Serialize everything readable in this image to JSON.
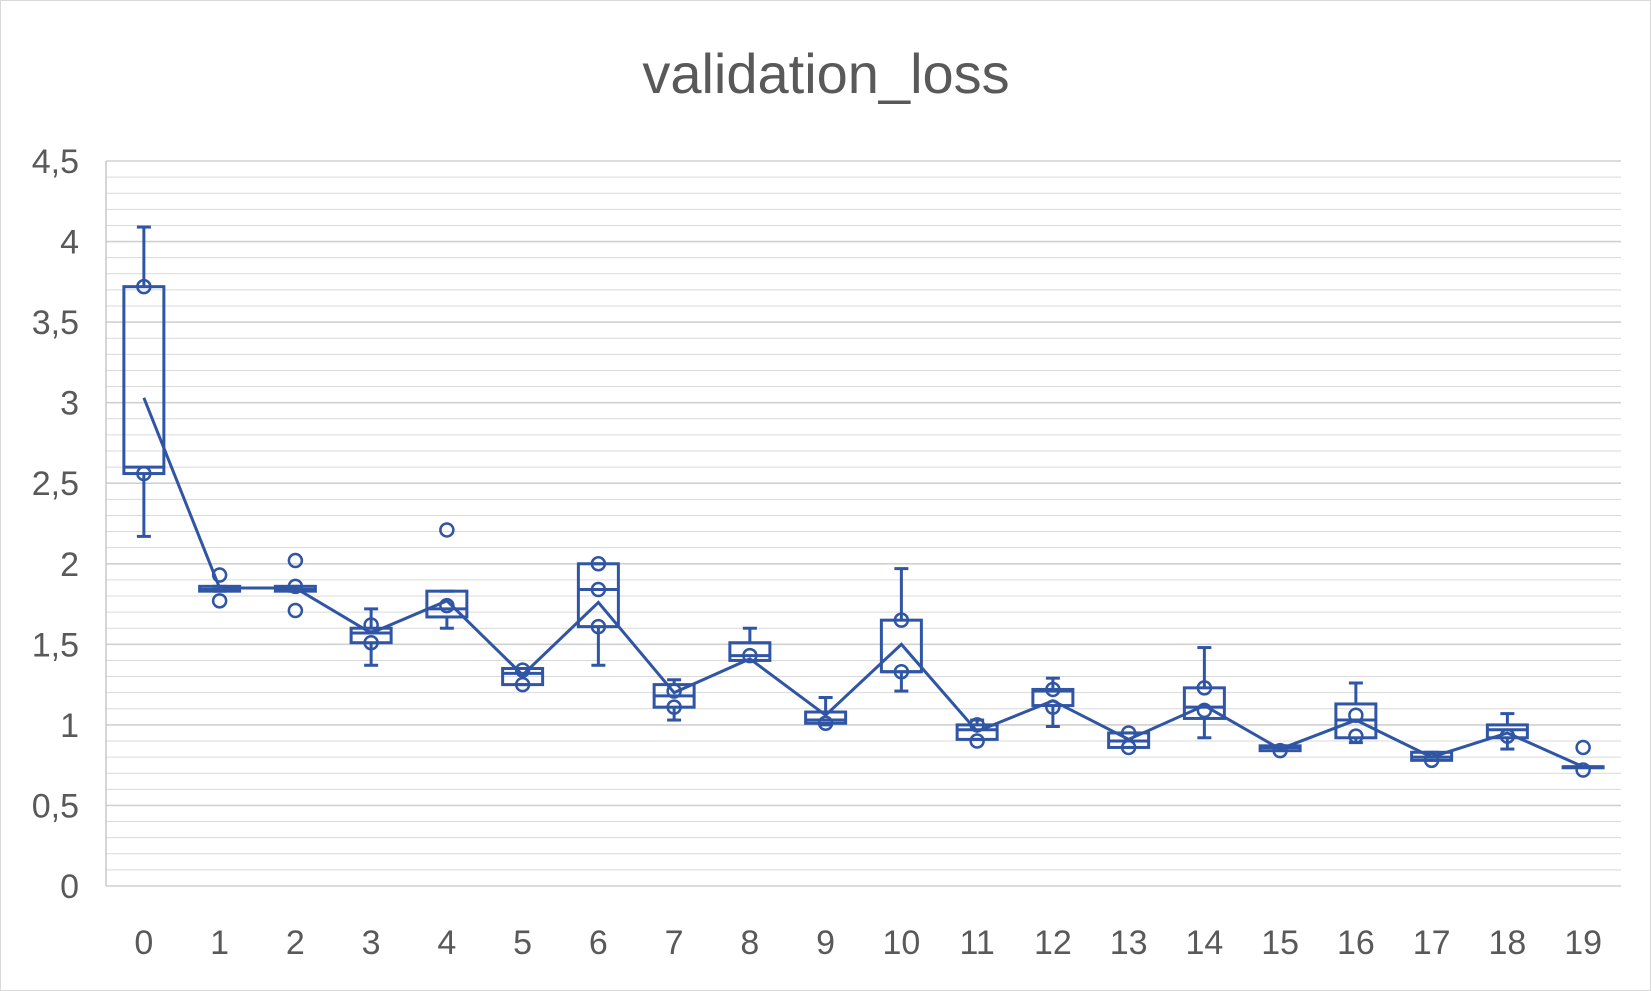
{
  "chart_data": {
    "type": "box",
    "title": "validation_loss",
    "xlabel": "",
    "ylabel": "",
    "ylim": [
      0,
      4.5
    ],
    "y_major_step": 0.5,
    "y_minor_step": 0.1,
    "y_tick_labels": [
      "0",
      "0,5",
      "1",
      "1,5",
      "2",
      "2,5",
      "3",
      "3,5",
      "4",
      "4,5"
    ],
    "categories": [
      "0",
      "1",
      "2",
      "3",
      "4",
      "5",
      "6",
      "7",
      "8",
      "9",
      "10",
      "11",
      "12",
      "13",
      "14",
      "15",
      "16",
      "17",
      "18",
      "19"
    ],
    "boxes": [
      {
        "x": "0",
        "min": 2.17,
        "q1": 2.56,
        "median": 2.6,
        "q3": 3.72,
        "max": 4.09,
        "mean": 3.03,
        "points": [
          3.72,
          2.56
        ]
      },
      {
        "x": "1",
        "min": 1.83,
        "q1": 1.83,
        "median": 1.84,
        "q3": 1.86,
        "max": 1.86,
        "mean": 1.85,
        "points": [
          1.93,
          1.77
        ]
      },
      {
        "x": "2",
        "min": 1.83,
        "q1": 1.83,
        "median": 1.84,
        "q3": 1.86,
        "max": 1.86,
        "mean": 1.85,
        "points": [
          2.02,
          1.86,
          1.71
        ]
      },
      {
        "x": "3",
        "min": 1.37,
        "q1": 1.51,
        "median": 1.57,
        "q3": 1.6,
        "max": 1.72,
        "mean": 1.57,
        "points": [
          1.62,
          1.51
        ]
      },
      {
        "x": "4",
        "min": 1.6,
        "q1": 1.67,
        "median": 1.72,
        "q3": 1.83,
        "max": 1.83,
        "mean": 1.77,
        "points": [
          2.21,
          1.74
        ]
      },
      {
        "x": "5",
        "min": 1.25,
        "q1": 1.25,
        "median": 1.32,
        "q3": 1.35,
        "max": 1.35,
        "mean": 1.31,
        "points": [
          1.34,
          1.25
        ]
      },
      {
        "x": "6",
        "min": 1.37,
        "q1": 1.61,
        "median": 1.84,
        "q3": 2.0,
        "max": 2.0,
        "mean": 1.76,
        "points": [
          2.0,
          1.84,
          1.61
        ]
      },
      {
        "x": "7",
        "min": 1.03,
        "q1": 1.11,
        "median": 1.18,
        "q3": 1.25,
        "max": 1.28,
        "mean": 1.2,
        "points": [
          1.21,
          1.11
        ]
      },
      {
        "x": "8",
        "min": 1.4,
        "q1": 1.4,
        "median": 1.43,
        "q3": 1.51,
        "max": 1.6,
        "mean": 1.41,
        "points": [
          1.43
        ]
      },
      {
        "x": "9",
        "min": 1.0,
        "q1": 1.01,
        "median": 1.03,
        "q3": 1.08,
        "max": 1.17,
        "mean": 1.06,
        "points": [
          1.01
        ]
      },
      {
        "x": "10",
        "min": 1.21,
        "q1": 1.33,
        "median": 1.33,
        "q3": 1.65,
        "max": 1.97,
        "mean": 1.5,
        "points": [
          1.65,
          1.33
        ]
      },
      {
        "x": "11",
        "min": 0.91,
        "q1": 0.91,
        "median": 0.97,
        "q3": 1.0,
        "max": 1.03,
        "mean": 0.96,
        "points": [
          1.0,
          0.9
        ]
      },
      {
        "x": "12",
        "min": 0.99,
        "q1": 1.12,
        "median": 1.21,
        "q3": 1.22,
        "max": 1.29,
        "mean": 1.15,
        "points": [
          1.22,
          1.11
        ]
      },
      {
        "x": "13",
        "min": 0.86,
        "q1": 0.86,
        "median": 0.9,
        "q3": 0.95,
        "max": 0.95,
        "mean": 0.91,
        "points": [
          0.95,
          0.86
        ]
      },
      {
        "x": "14",
        "min": 0.92,
        "q1": 1.04,
        "median": 1.11,
        "q3": 1.23,
        "max": 1.48,
        "mean": 1.12,
        "points": [
          1.23,
          1.09
        ]
      },
      {
        "x": "15",
        "min": 0.84,
        "q1": 0.84,
        "median": 0.86,
        "q3": 0.87,
        "max": 0.87,
        "mean": 0.85,
        "points": [
          0.84
        ]
      },
      {
        "x": "16",
        "min": 0.89,
        "q1": 0.92,
        "median": 1.03,
        "q3": 1.13,
        "max": 1.26,
        "mean": 1.03,
        "points": [
          1.06,
          0.93
        ]
      },
      {
        "x": "17",
        "min": 0.78,
        "q1": 0.78,
        "median": 0.8,
        "q3": 0.83,
        "max": 0.83,
        "mean": 0.8,
        "points": [
          0.78
        ]
      },
      {
        "x": "18",
        "min": 0.85,
        "q1": 0.92,
        "median": 0.97,
        "q3": 1.0,
        "max": 1.07,
        "mean": 0.95,
        "points": [
          0.93
        ]
      },
      {
        "x": "19",
        "min": 0.74,
        "q1": 0.74,
        "median": 0.74,
        "q3": 0.74,
        "max": 0.74,
        "mean": 0.74,
        "points": [
          0.86,
          0.72
        ]
      }
    ],
    "grid": true,
    "legend": "none",
    "colors": {
      "series": "#2f55a4",
      "grid": "#d9d9d9",
      "text": "#595959",
      "background": "#ffffff"
    }
  }
}
